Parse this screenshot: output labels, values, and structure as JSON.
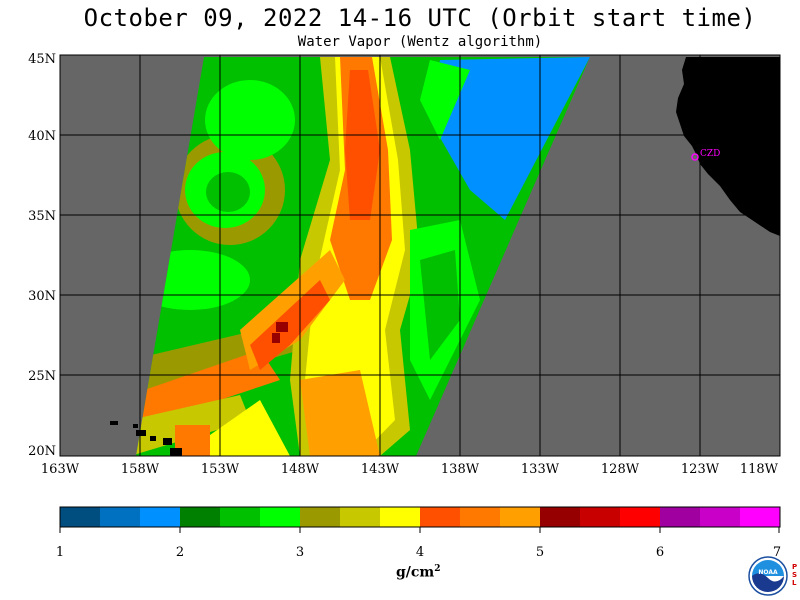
{
  "header": {
    "title": "October 09, 2022  14-16 UTC  (Orbit start time)",
    "subtitle": "Water Vapor (Wentz algorithm)"
  },
  "map": {
    "lat_labels": [
      "45N",
      "40N",
      "35N",
      "30N",
      "25N",
      "20N"
    ],
    "lon_labels": [
      "163W",
      "158W",
      "153W",
      "148W",
      "143W",
      "138W",
      "133W",
      "128W",
      "123W",
      "118W"
    ],
    "lat_range": [
      20,
      45
    ],
    "lon_range": [
      -163,
      -118
    ],
    "station_label": "CZD",
    "colors": {
      "no_data": "#666666",
      "land": "#000000",
      "grid": "#000000",
      "station": "#ff00ff"
    }
  },
  "colorbar": {
    "tick_labels": [
      "1",
      "2",
      "3",
      "4",
      "5",
      "6",
      "7"
    ],
    "unit": "g/cm",
    "unit_exp": "2",
    "colors": [
      "#004d80",
      "#0070c0",
      "#0090ff",
      "#008000",
      "#00c000",
      "#00ff00",
      "#9a9a00",
      "#c8c800",
      "#ffff00",
      "#ff5000",
      "#ff7800",
      "#ffa000",
      "#960000",
      "#c80000",
      "#ff0000",
      "#a000a0",
      "#c800c8",
      "#ff00ff"
    ]
  },
  "logo": {
    "text": "NOAA",
    "side_text": "PSL"
  }
}
